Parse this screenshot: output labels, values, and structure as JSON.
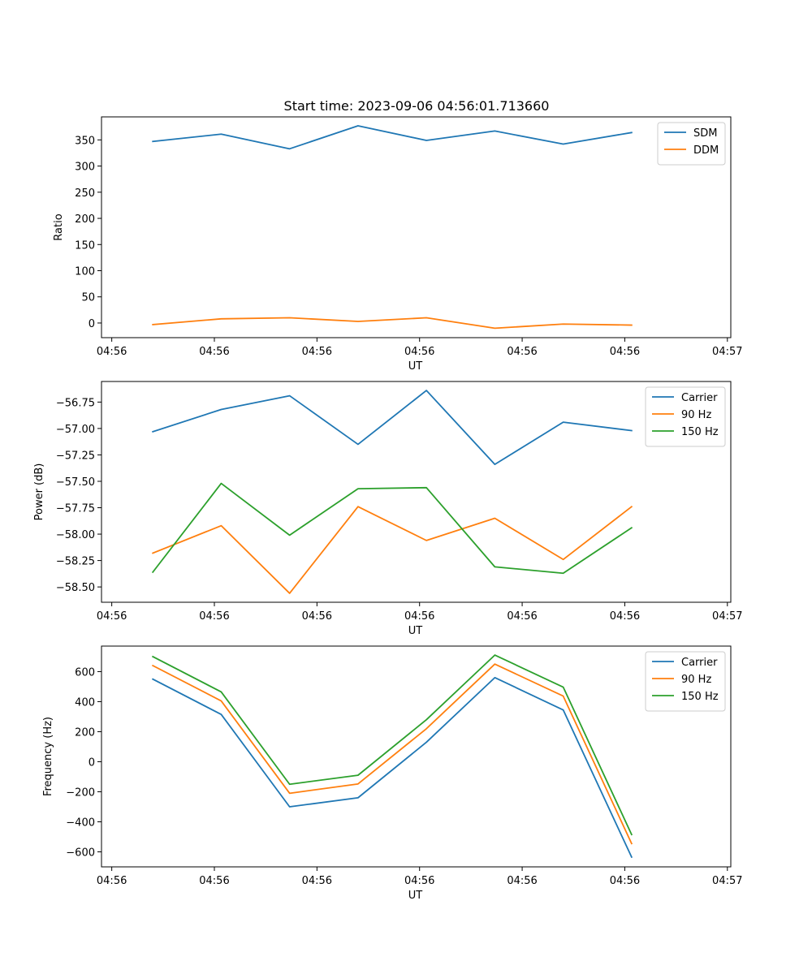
{
  "figure": {
    "title": "Start time: 2023-09-06 04:56:01.713660"
  },
  "colors": {
    "blue": "#1f77b4",
    "orange": "#ff7f0e",
    "green": "#2ca02c"
  },
  "chart_data": [
    {
      "type": "line",
      "title": "Start time: 2023-09-06 04:56:01.713660",
      "xlabel": "UT",
      "ylabel": "Ratio",
      "x": [
        0,
        1,
        2,
        3,
        4,
        5,
        6,
        7
      ],
      "xlim": [
        -0.75,
        8.45
      ],
      "x_ticks": [
        -0.6,
        0.9,
        2.4,
        3.9,
        5.4,
        6.9,
        8.4
      ],
      "x_tick_labels": [
        "04:56",
        "04:56",
        "04:56",
        "04:56",
        "04:56",
        "04:56",
        "04:57"
      ],
      "ylim": [
        -28,
        394
      ],
      "y_ticks": [
        0,
        50,
        100,
        150,
        200,
        250,
        300,
        350
      ],
      "y_tick_labels": [
        "0",
        "50",
        "100",
        "150",
        "200",
        "250",
        "300",
        "350"
      ],
      "legend_position": "top-right",
      "series": [
        {
          "name": "SDM",
          "color": "#1f77b4",
          "values": [
            347,
            361,
            333,
            377,
            349,
            367,
            342,
            364
          ]
        },
        {
          "name": "DDM",
          "color": "#ff7f0e",
          "values": [
            -3,
            8,
            10,
            3,
            10,
            -10,
            -2,
            -4
          ]
        }
      ]
    },
    {
      "type": "line",
      "title": "",
      "xlabel": "UT",
      "ylabel": "Power (dB)",
      "x": [
        0,
        1,
        2,
        3,
        4,
        5,
        6,
        7
      ],
      "xlim": [
        -0.75,
        8.45
      ],
      "x_ticks": [
        -0.6,
        0.9,
        2.4,
        3.9,
        5.4,
        6.9,
        8.4
      ],
      "x_tick_labels": [
        "04:56",
        "04:56",
        "04:56",
        "04:56",
        "04:56",
        "04:56",
        "04:57"
      ],
      "ylim": [
        -58.645,
        -56.555
      ],
      "y_ticks": [
        -58.5,
        -58.25,
        -58.0,
        -57.75,
        -57.5,
        -57.25,
        -57.0,
        -56.75
      ],
      "y_tick_labels": [
        "−58.50",
        "−58.25",
        "−58.00",
        "−57.75",
        "−57.50",
        "−57.25",
        "−57.00",
        "−56.75"
      ],
      "legend_position": "top-right",
      "series": [
        {
          "name": "Carrier",
          "color": "#1f77b4",
          "values": [
            -57.03,
            -56.82,
            -56.69,
            -57.15,
            -56.64,
            -57.34,
            -56.94,
            -57.02
          ]
        },
        {
          "name": "90 Hz",
          "color": "#ff7f0e",
          "values": [
            -58.18,
            -57.92,
            -58.56,
            -57.74,
            -58.06,
            -57.85,
            -58.24,
            -57.74
          ]
        },
        {
          "name": "150 Hz",
          "color": "#2ca02c",
          "values": [
            -58.36,
            -57.52,
            -58.01,
            -57.57,
            -57.56,
            -58.31,
            -58.37,
            -57.94
          ]
        }
      ]
    },
    {
      "type": "line",
      "title": "",
      "xlabel": "UT",
      "ylabel": "Frequency (Hz)",
      "x": [
        0,
        1,
        2,
        3,
        4,
        5,
        6,
        7
      ],
      "xlim": [
        -0.75,
        8.45
      ],
      "x_ticks": [
        -0.6,
        0.9,
        2.4,
        3.9,
        5.4,
        6.9,
        8.4
      ],
      "x_tick_labels": [
        "04:56",
        "04:56",
        "04:56",
        "04:56",
        "04:56",
        "04:56",
        "04:57"
      ],
      "ylim": [
        -700,
        770
      ],
      "y_ticks": [
        -600,
        -400,
        -200,
        0,
        200,
        400,
        600
      ],
      "y_tick_labels": [
        "−600",
        "−400",
        "−200",
        "0",
        "200",
        "400",
        "600"
      ],
      "legend_position": "top-right",
      "series": [
        {
          "name": "Carrier",
          "color": "#1f77b4",
          "values": [
            550,
            315,
            -300,
            -240,
            130,
            560,
            345,
            -635
          ]
        },
        {
          "name": "90 Hz",
          "color": "#ff7f0e",
          "values": [
            640,
            405,
            -210,
            -148,
            220,
            650,
            437,
            -545
          ]
        },
        {
          "name": "150 Hz",
          "color": "#2ca02c",
          "values": [
            700,
            465,
            -150,
            -90,
            280,
            710,
            497,
            -485
          ]
        }
      ]
    }
  ]
}
